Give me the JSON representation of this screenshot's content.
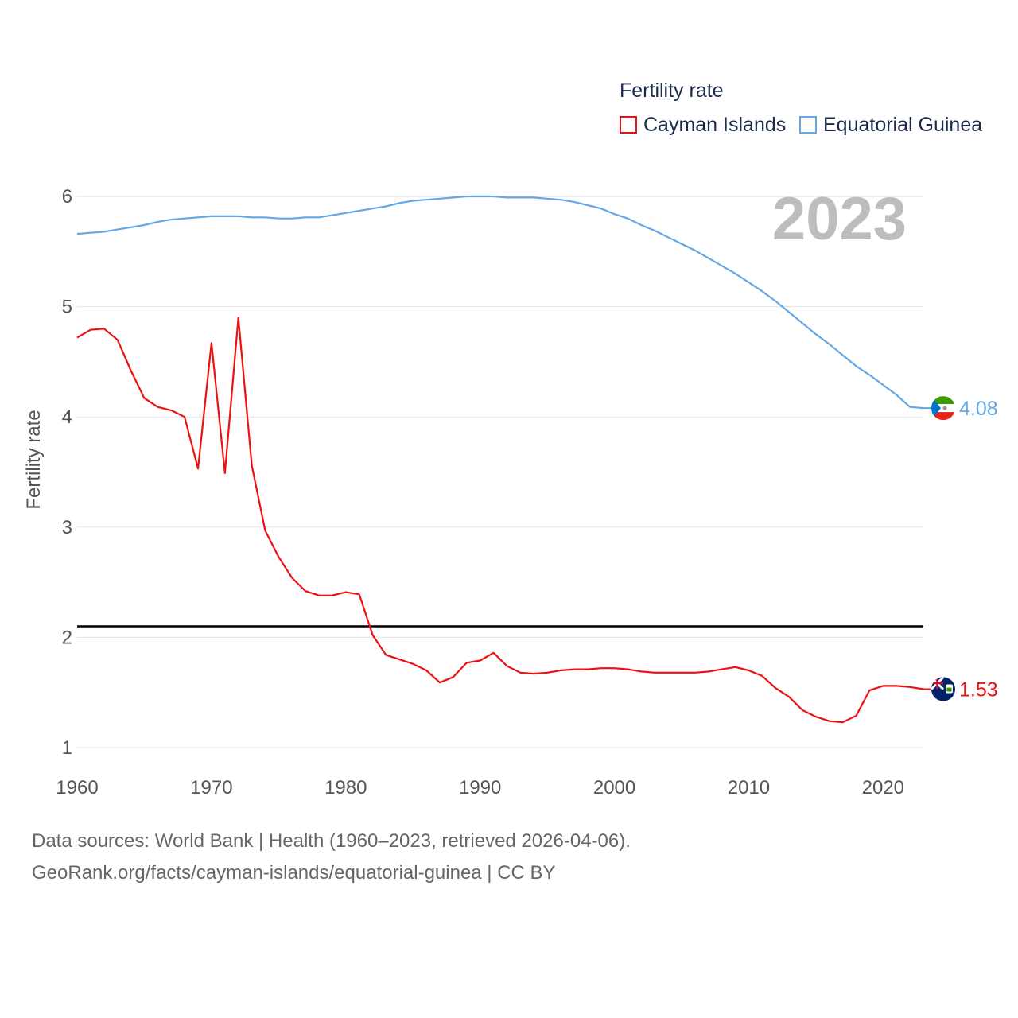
{
  "chart_data": {
    "type": "line",
    "title": "Fertility rate",
    "ylabel": "Fertility rate",
    "xlabel": "",
    "year_label": "2023",
    "xlim": [
      1960,
      2023
    ],
    "ylim": [
      1,
      6
    ],
    "x_ticks": [
      1960,
      1970,
      1980,
      1990,
      2000,
      2010,
      2020
    ],
    "y_ticks": [
      1,
      2,
      3,
      4,
      5,
      6
    ],
    "reference_line": {
      "value": 2.1,
      "color": "#000000"
    },
    "grid": true,
    "legend_position": "top-right",
    "x": [
      1960,
      1961,
      1962,
      1963,
      1964,
      1965,
      1966,
      1967,
      1968,
      1969,
      1970,
      1971,
      1972,
      1973,
      1974,
      1975,
      1976,
      1977,
      1978,
      1979,
      1980,
      1981,
      1982,
      1983,
      1984,
      1985,
      1986,
      1987,
      1988,
      1989,
      1990,
      1991,
      1992,
      1993,
      1994,
      1995,
      1996,
      1997,
      1998,
      1999,
      2000,
      2001,
      2002,
      2003,
      2004,
      2005,
      2006,
      2007,
      2008,
      2009,
      2010,
      2011,
      2012,
      2013,
      2014,
      2015,
      2016,
      2017,
      2018,
      2019,
      2020,
      2021,
      2022,
      2023
    ],
    "series": [
      {
        "name": "Cayman Islands",
        "color": "#ee1111",
        "end_value_label": "1.53",
        "flag": "cayman-islands-flag",
        "values": [
          4.72,
          4.79,
          4.8,
          4.7,
          4.42,
          4.17,
          4.09,
          4.06,
          4.0,
          3.53,
          4.67,
          3.49,
          4.9,
          3.56,
          2.97,
          2.73,
          2.54,
          2.42,
          2.38,
          2.38,
          2.41,
          2.39,
          2.02,
          1.84,
          1.8,
          1.76,
          1.7,
          1.59,
          1.64,
          1.77,
          1.79,
          1.86,
          1.74,
          1.68,
          1.67,
          1.68,
          1.7,
          1.71,
          1.71,
          1.72,
          1.72,
          1.71,
          1.69,
          1.68,
          1.68,
          1.68,
          1.68,
          1.69,
          1.71,
          1.73,
          1.7,
          1.65,
          1.54,
          1.46,
          1.34,
          1.28,
          1.24,
          1.23,
          1.29,
          1.52,
          1.56,
          1.56,
          1.55,
          1.53
        ]
      },
      {
        "name": "Equatorial Guinea",
        "color": "#63a8e5",
        "end_value_label": "4.08",
        "flag": "equatorial-guinea-flag",
        "values": [
          5.66,
          5.67,
          5.68,
          5.7,
          5.72,
          5.74,
          5.77,
          5.79,
          5.8,
          5.81,
          5.82,
          5.82,
          5.82,
          5.81,
          5.81,
          5.8,
          5.8,
          5.81,
          5.81,
          5.83,
          5.85,
          5.87,
          5.89,
          5.91,
          5.94,
          5.96,
          5.97,
          5.98,
          5.99,
          6.0,
          6.0,
          6.0,
          5.99,
          5.99,
          5.99,
          5.98,
          5.97,
          5.95,
          5.92,
          5.89,
          5.84,
          5.8,
          5.74,
          5.69,
          5.63,
          5.57,
          5.51,
          5.44,
          5.37,
          5.3,
          5.22,
          5.14,
          5.05,
          4.95,
          4.85,
          4.75,
          4.66,
          4.56,
          4.46,
          4.38,
          4.29,
          4.2,
          4.09,
          4.08
        ]
      }
    ]
  },
  "source": {
    "line1": "Data sources: World Bank | Health (1960–2023, retrieved 2026-04-06).",
    "line2": "GeoRank.org/facts/cayman-islands/equatorial-guinea | CC BY"
  }
}
